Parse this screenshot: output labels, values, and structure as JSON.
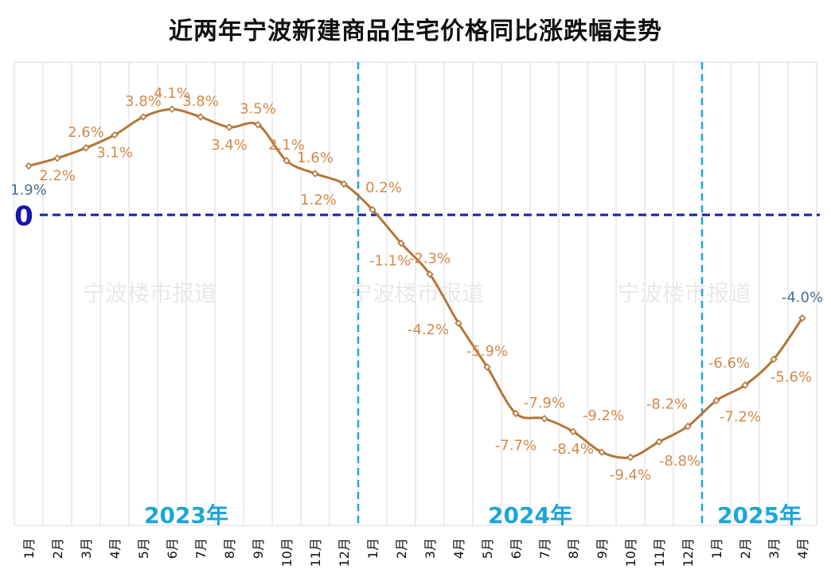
{
  "chart_data": {
    "type": "line",
    "title": "近两年宁波新建商品住宅价格同比涨跌幅走势",
    "zero_label": "0",
    "watermark": "宁波楼市报道",
    "years": [
      {
        "label": "2023年",
        "months": 12
      },
      {
        "label": "2024年",
        "months": 12
      },
      {
        "label": "2025年",
        "months": 4
      }
    ],
    "categories": [
      "1月",
      "2月",
      "3月",
      "4月",
      "5月",
      "6月",
      "7月",
      "8月",
      "9月",
      "10月",
      "11月",
      "12月",
      "1月",
      "2月",
      "3月",
      "4月",
      "5月",
      "6月",
      "7月",
      "8月",
      "9月",
      "10月",
      "11月",
      "12月",
      "1月",
      "2月",
      "3月",
      "4月"
    ],
    "values": [
      1.9,
      2.2,
      2.6,
      3.1,
      3.8,
      4.1,
      3.8,
      3.4,
      3.5,
      2.1,
      1.6,
      1.2,
      0.2,
      -1.1,
      -2.3,
      -4.2,
      -5.9,
      -7.7,
      -7.9,
      -8.4,
      -9.2,
      -9.4,
      -8.8,
      -8.2,
      -7.2,
      -6.6,
      -5.6,
      -4.0
    ],
    "data_labels": [
      "1.9%",
      "2.2%",
      "2.6%",
      "3.1%",
      "3.8%",
      "4.1%",
      "3.8%",
      "3.4%",
      "3.5%",
      "2.1%",
      "1.6%",
      "1.2%",
      "0.2%",
      "-1.1%",
      "-2.3%",
      "-4.2%",
      "-5.9%",
      "-7.7%",
      "-7.9%",
      "-8.4%",
      "-9.2%",
      "-9.4%",
      "-8.8%",
      "-8.2%",
      "-7.2%",
      "-6.6%",
      "-5.6%",
      "-4.0%"
    ],
    "ylim": [
      -12.0,
      6.0
    ],
    "grid": true,
    "reference_line": 0,
    "colors": {
      "line": "#b5763a",
      "marker_fill": "#ffffff",
      "label": "#d4894a",
      "end_label": "#4d6e93",
      "zero_line": "#1a1aa8",
      "year_divider": "#1ea5d8",
      "grid": "#d9d9d9"
    }
  }
}
